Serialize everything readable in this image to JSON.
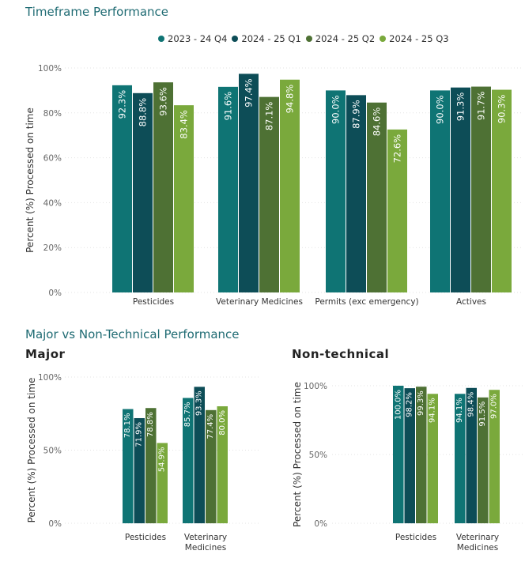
{
  "colors": [
    "#0f7474",
    "#0d4d57",
    "#4e7134",
    "#7aa93c"
  ],
  "sections": {
    "timeframe_title": "Timeframe Performance",
    "major_vs_title": "Major vs Non-Technical Performance"
  },
  "chart_data": [
    {
      "type": "bar",
      "title": "",
      "ylabel": "Percent (%) Processed on time",
      "ylim": [
        0,
        100
      ],
      "yticks": [
        "0%",
        "20%",
        "40%",
        "60%",
        "80%",
        "100%"
      ],
      "categories": [
        "Pesticides",
        "Veterinary Medicines",
        "Permits (exc emergency)",
        "Actives"
      ],
      "series": [
        {
          "name": "2023 - 24 Q4",
          "values": [
            92.3,
            91.6,
            90.0,
            90.0
          ],
          "labels": [
            "92.3%",
            "91.6%",
            "90.0%",
            "90.0%"
          ]
        },
        {
          "name": "2024 - 25 Q1",
          "values": [
            88.8,
            97.4,
            87.9,
            91.3
          ],
          "labels": [
            "88.8%",
            "97.4%",
            "87.9%",
            "91.3%"
          ]
        },
        {
          "name": "2024 - 25 Q2",
          "values": [
            93.6,
            87.1,
            84.6,
            91.7
          ],
          "labels": [
            "93.6%",
            "87.1%",
            "84.6%",
            "91.7%"
          ]
        },
        {
          "name": "2024 - 25 Q3",
          "values": [
            83.4,
            94.8,
            72.6,
            90.3
          ],
          "labels": [
            "83.4%",
            "94.8%",
            "72.6%",
            "90.3%"
          ]
        }
      ],
      "legend": "top",
      "grid": true
    },
    {
      "type": "bar",
      "title": "Major",
      "ylabel": "Percent (%) Processed on time",
      "ylim": [
        0,
        100
      ],
      "yticks": [
        "0%",
        "50%",
        "100%"
      ],
      "categories": [
        "Pesticides",
        "Veterinary Medicines"
      ],
      "series": [
        {
          "name": "2023 - 24 Q4",
          "values": [
            78.1,
            85.7
          ],
          "labels": [
            "78.1%",
            "85.7%"
          ]
        },
        {
          "name": "2024 - 25 Q1",
          "values": [
            71.9,
            93.3
          ],
          "labels": [
            "71.9%",
            "93.3%"
          ]
        },
        {
          "name": "2024 - 25 Q2",
          "values": [
            78.8,
            77.4
          ],
          "labels": [
            "78.8%",
            "77.4%"
          ]
        },
        {
          "name": "2024 - 25 Q3",
          "values": [
            54.9,
            80.0
          ],
          "labels": [
            "54.9%",
            "80.0%"
          ]
        }
      ],
      "grid": true
    },
    {
      "type": "bar",
      "title": "Non-technical",
      "ylabel": "Percent (%) Processed on time",
      "ylim": [
        0,
        100
      ],
      "yticks": [
        "0%",
        "50%",
        "100%"
      ],
      "categories": [
        "Pesticides",
        "Veterinary Medicines"
      ],
      "series": [
        {
          "name": "2023 - 24 Q4",
          "values": [
            100.0,
            94.1
          ],
          "labels": [
            "100.0%",
            "94.1%"
          ]
        },
        {
          "name": "2024 - 25 Q1",
          "values": [
            98.2,
            98.4
          ],
          "labels": [
            "98.2%",
            "98.4%"
          ]
        },
        {
          "name": "2024 - 25 Q2",
          "values": [
            99.3,
            91.5
          ],
          "labels": [
            "99.3%",
            "91.5%"
          ]
        },
        {
          "name": "2024 - 25 Q3",
          "values": [
            94.1,
            97.0
          ],
          "labels": [
            "94.1%",
            "97.0%"
          ]
        }
      ],
      "grid": true
    }
  ]
}
